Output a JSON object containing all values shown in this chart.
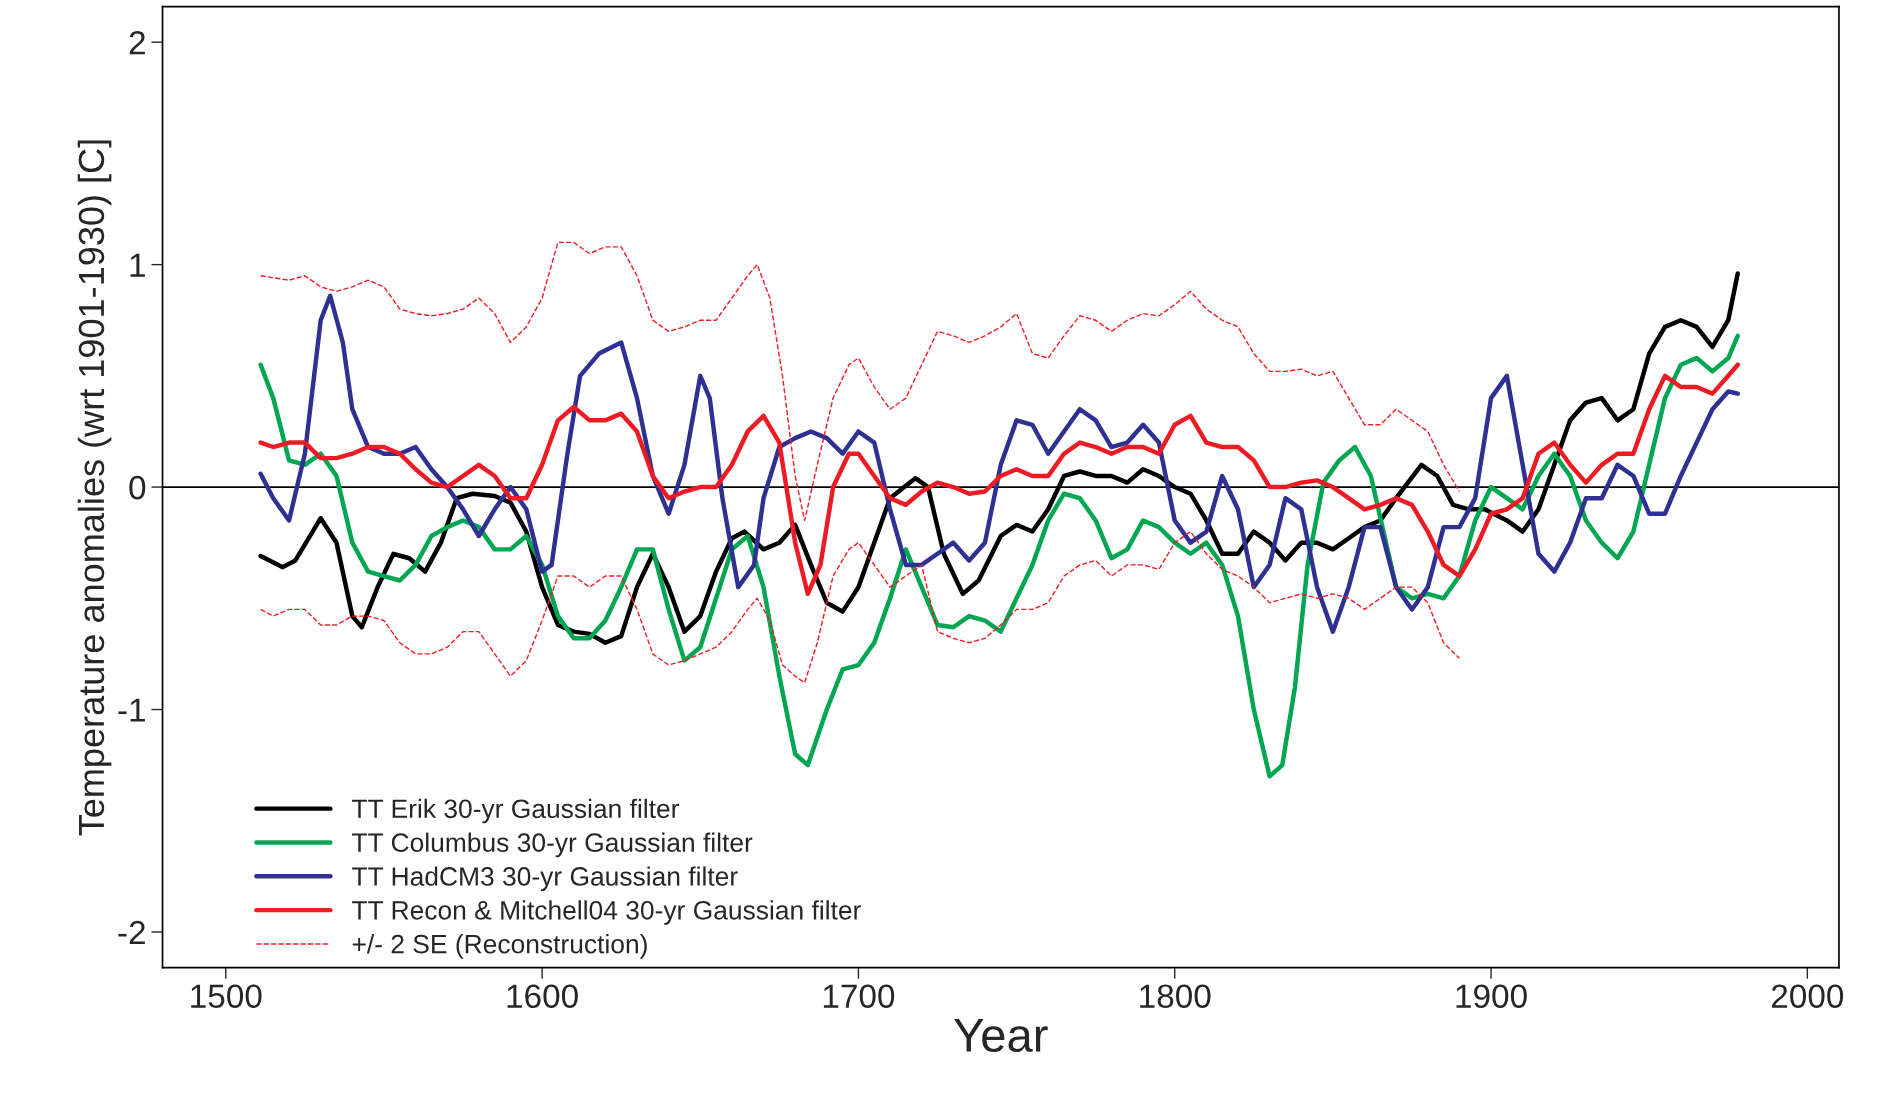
{
  "chart_data": {
    "type": "line",
    "xlabel": "Year",
    "ylabel": "Temperature anomalies (wrt 1901-1930) [C]",
    "xlim": [
      1480,
      2010
    ],
    "xticks": [
      1500,
      1600,
      1700,
      1800,
      1900,
      2000
    ],
    "ylim": [
      -2.16,
      2.16
    ],
    "yticks": [
      -2,
      -1,
      0,
      1,
      2
    ],
    "grid": false,
    "legend": "bottom left",
    "marker": "none",
    "ref_lines": [
      {
        "axis": "y",
        "value": 0,
        "color": "#000000",
        "line_style": "solid"
      }
    ],
    "series": [
      {
        "name": "TT Erik 30-yr Gaussian filter",
        "color": "#000000",
        "line_style": "solid",
        "x": [
          1511,
          1518,
          1522,
          1530,
          1535,
          1540,
          1543,
          1548,
          1553,
          1558,
          1563,
          1568,
          1573,
          1578,
          1585,
          1590,
          1595,
          1600,
          1605,
          1610,
          1615,
          1620,
          1625,
          1630,
          1635,
          1640,
          1645,
          1650,
          1655,
          1660,
          1664,
          1670,
          1675,
          1680,
          1685,
          1690,
          1695,
          1700,
          1705,
          1710,
          1718,
          1722,
          1727,
          1733,
          1738,
          1745,
          1750,
          1755,
          1760,
          1765,
          1770,
          1775,
          1780,
          1785,
          1790,
          1795,
          1800,
          1805,
          1810,
          1815,
          1820,
          1825,
          1830,
          1835,
          1840,
          1845,
          1850,
          1855,
          1860,
          1865,
          1870,
          1878,
          1883,
          1888,
          1893,
          1898,
          1905,
          1910,
          1915,
          1920,
          1925,
          1930,
          1935,
          1940,
          1945,
          1950,
          1955,
          1960,
          1965,
          1970,
          1975,
          1978
        ],
        "values": [
          -0.31,
          -0.36,
          -0.33,
          -0.14,
          -0.25,
          -0.58,
          -0.63,
          -0.45,
          -0.3,
          -0.32,
          -0.38,
          -0.25,
          -0.05,
          -0.03,
          -0.04,
          -0.07,
          -0.2,
          -0.45,
          -0.62,
          -0.65,
          -0.66,
          -0.7,
          -0.67,
          -0.45,
          -0.3,
          -0.45,
          -0.65,
          -0.58,
          -0.38,
          -0.23,
          -0.2,
          -0.28,
          -0.25,
          -0.17,
          -0.35,
          -0.52,
          -0.56,
          -0.45,
          -0.25,
          -0.05,
          0.04,
          0.0,
          -0.3,
          -0.48,
          -0.42,
          -0.22,
          -0.17,
          -0.2,
          -0.1,
          0.05,
          0.07,
          0.05,
          0.05,
          0.02,
          0.08,
          0.05,
          0.0,
          -0.03,
          -0.15,
          -0.3,
          -0.3,
          -0.2,
          -0.25,
          -0.33,
          -0.25,
          -0.25,
          -0.28,
          -0.23,
          -0.18,
          -0.15,
          -0.05,
          0.1,
          0.05,
          -0.08,
          -0.1,
          -0.1,
          -0.15,
          -0.2,
          -0.1,
          0.1,
          0.3,
          0.38,
          0.4,
          0.3,
          0.35,
          0.6,
          0.72,
          0.75,
          0.72,
          0.63,
          0.75,
          0.96
        ]
      },
      {
        "name": "TT Columbus 30-yr Gaussian filter",
        "color": "#00a651",
        "line_style": "solid",
        "x": [
          1511,
          1515,
          1520,
          1525,
          1530,
          1535,
          1540,
          1545,
          1550,
          1555,
          1560,
          1565,
          1570,
          1575,
          1580,
          1585,
          1590,
          1595,
          1600,
          1605,
          1610,
          1615,
          1620,
          1625,
          1630,
          1635,
          1640,
          1645,
          1650,
          1655,
          1660,
          1665,
          1670,
          1675,
          1680,
          1684,
          1690,
          1695,
          1700,
          1705,
          1710,
          1715,
          1720,
          1725,
          1730,
          1735,
          1740,
          1745,
          1750,
          1755,
          1760,
          1765,
          1770,
          1775,
          1780,
          1785,
          1790,
          1795,
          1800,
          1805,
          1810,
          1815,
          1820,
          1825,
          1830,
          1834,
          1838,
          1842,
          1847,
          1852,
          1857,
          1862,
          1866,
          1870,
          1875,
          1880,
          1885,
          1890,
          1895,
          1900,
          1905,
          1910,
          1915,
          1920,
          1925,
          1930,
          1935,
          1940,
          1945,
          1950,
          1955,
          1960,
          1965,
          1970,
          1975,
          1978
        ],
        "values": [
          0.55,
          0.4,
          0.12,
          0.1,
          0.15,
          0.05,
          -0.25,
          -0.38,
          -0.4,
          -0.42,
          -0.35,
          -0.22,
          -0.18,
          -0.15,
          -0.18,
          -0.28,
          -0.28,
          -0.22,
          -0.35,
          -0.58,
          -0.68,
          -0.68,
          -0.6,
          -0.45,
          -0.28,
          -0.28,
          -0.55,
          -0.78,
          -0.72,
          -0.5,
          -0.28,
          -0.22,
          -0.45,
          -0.85,
          -1.2,
          -1.25,
          -1.0,
          -0.82,
          -0.8,
          -0.7,
          -0.5,
          -0.28,
          -0.45,
          -0.62,
          -0.63,
          -0.58,
          -0.6,
          -0.65,
          -0.5,
          -0.35,
          -0.15,
          -0.03,
          -0.05,
          -0.15,
          -0.32,
          -0.28,
          -0.15,
          -0.18,
          -0.25,
          -0.3,
          -0.25,
          -0.35,
          -0.58,
          -1.0,
          -1.3,
          -1.25,
          -0.9,
          -0.35,
          0.02,
          0.12,
          0.18,
          0.05,
          -0.2,
          -0.45,
          -0.5,
          -0.48,
          -0.5,
          -0.4,
          -0.15,
          0.0,
          -0.05,
          -0.1,
          0.05,
          0.15,
          0.05,
          -0.15,
          -0.25,
          -0.32,
          -0.2,
          0.1,
          0.4,
          0.55,
          0.58,
          0.52,
          0.58,
          0.68
        ]
      },
      {
        "name": "TT HadCM3 30-yr Gaussian filter",
        "color": "#2e3192",
        "line_style": "solid",
        "x": [
          1511,
          1515,
          1520,
          1525,
          1530,
          1533,
          1537,
          1540,
          1545,
          1550,
          1555,
          1560,
          1565,
          1570,
          1575,
          1580,
          1585,
          1590,
          1595,
          1600,
          1603,
          1608,
          1612,
          1618,
          1625,
          1630,
          1635,
          1640,
          1645,
          1650,
          1653,
          1657,
          1662,
          1667,
          1670,
          1675,
          1680,
          1685,
          1690,
          1695,
          1700,
          1705,
          1710,
          1715,
          1720,
          1725,
          1730,
          1735,
          1740,
          1745,
          1750,
          1755,
          1760,
          1765,
          1770,
          1775,
          1780,
          1785,
          1790,
          1795,
          1800,
          1805,
          1810,
          1815,
          1820,
          1825,
          1830,
          1835,
          1840,
          1845,
          1850,
          1855,
          1860,
          1865,
          1870,
          1875,
          1880,
          1885,
          1890,
          1895,
          1900,
          1905,
          1910,
          1915,
          1920,
          1925,
          1930,
          1935,
          1940,
          1945,
          1950,
          1955,
          1960,
          1965,
          1970,
          1975,
          1978
        ],
        "values": [
          0.06,
          -0.05,
          -0.15,
          0.15,
          0.75,
          0.86,
          0.65,
          0.35,
          0.18,
          0.15,
          0.15,
          0.18,
          0.08,
          0.0,
          -0.1,
          -0.22,
          -0.1,
          0.0,
          -0.1,
          -0.38,
          -0.35,
          0.15,
          0.5,
          0.6,
          0.65,
          0.4,
          0.05,
          -0.12,
          0.1,
          0.5,
          0.4,
          -0.05,
          -0.45,
          -0.35,
          -0.05,
          0.18,
          0.22,
          0.25,
          0.22,
          0.15,
          0.25,
          0.2,
          -0.1,
          -0.35,
          -0.35,
          -0.3,
          -0.25,
          -0.33,
          -0.25,
          0.1,
          0.3,
          0.28,
          0.15,
          0.25,
          0.35,
          0.3,
          0.18,
          0.2,
          0.28,
          0.2,
          -0.15,
          -0.25,
          -0.2,
          0.05,
          -0.1,
          -0.45,
          -0.35,
          -0.05,
          -0.1,
          -0.45,
          -0.65,
          -0.45,
          -0.18,
          -0.18,
          -0.45,
          -0.55,
          -0.45,
          -0.18,
          -0.18,
          -0.05,
          0.4,
          0.5,
          0.1,
          -0.3,
          -0.38,
          -0.25,
          -0.05,
          -0.05,
          0.1,
          0.05,
          -0.12,
          -0.12,
          0.05,
          0.2,
          0.35,
          0.43,
          0.42
        ]
      },
      {
        "name": "TT Recon & Mitchell04 30-yr Gaussian filter",
        "color": "#ed1c24",
        "line_style": "solid",
        "x": [
          1511,
          1515,
          1520,
          1525,
          1530,
          1535,
          1540,
          1545,
          1550,
          1555,
          1560,
          1565,
          1570,
          1575,
          1580,
          1585,
          1590,
          1595,
          1600,
          1605,
          1610,
          1615,
          1620,
          1625,
          1630,
          1635,
          1640,
          1645,
          1650,
          1655,
          1660,
          1665,
          1670,
          1675,
          1680,
          1684,
          1688,
          1692,
          1697,
          1700,
          1705,
          1710,
          1715,
          1720,
          1725,
          1730,
          1735,
          1740,
          1745,
          1750,
          1755,
          1760,
          1765,
          1770,
          1775,
          1780,
          1785,
          1790,
          1795,
          1800,
          1805,
          1810,
          1815,
          1820,
          1825,
          1830,
          1835,
          1840,
          1845,
          1850,
          1855,
          1860,
          1865,
          1870,
          1875,
          1880,
          1885,
          1890,
          1895,
          1900,
          1905,
          1910,
          1915,
          1920,
          1925,
          1930,
          1935,
          1940,
          1945,
          1950,
          1955,
          1960,
          1965,
          1970,
          1975,
          1978
        ],
        "values": [
          0.2,
          0.18,
          0.2,
          0.2,
          0.13,
          0.13,
          0.15,
          0.18,
          0.18,
          0.15,
          0.08,
          0.02,
          0.0,
          0.05,
          0.1,
          0.05,
          -0.05,
          -0.05,
          0.1,
          0.3,
          0.36,
          0.3,
          0.3,
          0.33,
          0.25,
          0.05,
          -0.05,
          -0.02,
          0.0,
          0.0,
          0.1,
          0.25,
          0.32,
          0.2,
          -0.25,
          -0.48,
          -0.35,
          0.0,
          0.15,
          0.15,
          0.05,
          -0.05,
          -0.08,
          -0.02,
          0.02,
          0.0,
          -0.03,
          -0.02,
          0.05,
          0.08,
          0.05,
          0.05,
          0.15,
          0.2,
          0.18,
          0.15,
          0.18,
          0.18,
          0.15,
          0.28,
          0.32,
          0.2,
          0.18,
          0.18,
          0.12,
          0.0,
          0.0,
          0.02,
          0.03,
          0.0,
          -0.05,
          -0.1,
          -0.08,
          -0.05,
          -0.08,
          -0.2,
          -0.35,
          -0.4,
          -0.28,
          -0.12,
          -0.1,
          -0.05,
          0.15,
          0.2,
          0.1,
          0.02,
          0.1,
          0.15,
          0.15,
          0.35,
          0.5,
          0.45,
          0.45,
          0.42,
          0.5,
          0.55
        ]
      },
      {
        "name": "+/- 2 SE (Reconstruction)",
        "color": "#ed1c24",
        "line_style": "dashed",
        "x": [
          1511,
          1520,
          1525,
          1530,
          1535,
          1540,
          1545,
          1550,
          1555,
          1560,
          1565,
          1570,
          1575,
          1580,
          1585,
          1590,
          1595,
          1600,
          1605,
          1610,
          1615,
          1620,
          1625,
          1630,
          1635,
          1640,
          1645,
          1650,
          1655,
          1660,
          1665,
          1668,
          1672,
          1676,
          1680,
          1683,
          1687,
          1692,
          1697,
          1700,
          1705,
          1710,
          1715,
          1720,
          1725,
          1730,
          1735,
          1740,
          1745,
          1750,
          1755,
          1760,
          1765,
          1770,
          1775,
          1780,
          1785,
          1790,
          1795,
          1800,
          1805,
          1810,
          1815,
          1820,
          1825,
          1830,
          1835,
          1840,
          1845,
          1850,
          1855,
          1860,
          1865,
          1870,
          1875,
          1880,
          1885,
          1890
        ],
        "values": [
          0.95,
          0.93,
          0.95,
          0.9,
          0.88,
          0.9,
          0.93,
          0.9,
          0.8,
          0.78,
          0.77,
          0.78,
          0.8,
          0.85,
          0.78,
          0.65,
          0.72,
          0.85,
          1.1,
          1.1,
          1.05,
          1.08,
          1.08,
          0.95,
          0.75,
          0.7,
          0.72,
          0.75,
          0.75,
          0.85,
          0.95,
          1.0,
          0.85,
          0.5,
          0.05,
          -0.15,
          0.1,
          0.4,
          0.55,
          0.58,
          0.45,
          0.35,
          0.4,
          0.55,
          0.7,
          0.68,
          0.65,
          0.68,
          0.72,
          0.78,
          0.6,
          0.58,
          0.68,
          0.77,
          0.75,
          0.7,
          0.75,
          0.78,
          0.77,
          0.82,
          0.88,
          0.8,
          0.75,
          0.72,
          0.6,
          0.52,
          0.52,
          0.53,
          0.5,
          0.52,
          0.4,
          0.28,
          0.28,
          0.35,
          0.3,
          0.25,
          0.1,
          -0.02
        ]
      },
      {
        "color": "#ed1c24",
        "line_style": "dashed",
        "x": [
          1511,
          1515,
          1520,
          1525,
          1530,
          1535,
          1540,
          1545,
          1550,
          1555,
          1560,
          1565,
          1570,
          1575,
          1580,
          1585,
          1590,
          1595,
          1600,
          1605,
          1610,
          1615,
          1620,
          1625,
          1630,
          1635,
          1640,
          1645,
          1650,
          1655,
          1660,
          1665,
          1668,
          1672,
          1676,
          1680,
          1683,
          1687,
          1692,
          1697,
          1700,
          1705,
          1710,
          1715,
          1720,
          1725,
          1730,
          1735,
          1740,
          1745,
          1750,
          1755,
          1760,
          1765,
          1770,
          1775,
          1780,
          1785,
          1790,
          1795,
          1800,
          1805,
          1810,
          1815,
          1820,
          1825,
          1830,
          1835,
          1840,
          1845,
          1850,
          1855,
          1860,
          1865,
          1870,
          1875,
          1880,
          1885,
          1890
        ],
        "values": [
          -0.55,
          -0.58,
          -0.55,
          -0.55,
          -0.62,
          -0.62,
          -0.58,
          -0.58,
          -0.6,
          -0.7,
          -0.75,
          -0.75,
          -0.72,
          -0.65,
          -0.65,
          -0.75,
          -0.85,
          -0.78,
          -0.6,
          -0.4,
          -0.4,
          -0.45,
          -0.4,
          -0.4,
          -0.55,
          -0.75,
          -0.8,
          -0.78,
          -0.75,
          -0.72,
          -0.65,
          -0.55,
          -0.5,
          -0.6,
          -0.8,
          -0.85,
          -0.88,
          -0.7,
          -0.4,
          -0.28,
          -0.25,
          -0.35,
          -0.45,
          -0.4,
          -0.35,
          -0.65,
          -0.68,
          -0.7,
          -0.68,
          -0.62,
          -0.55,
          -0.55,
          -0.52,
          -0.4,
          -0.35,
          -0.33,
          -0.4,
          -0.35,
          -0.35,
          -0.37,
          -0.25,
          -0.2,
          -0.3,
          -0.37,
          -0.4,
          -0.45,
          -0.52,
          -0.5,
          -0.48,
          -0.5,
          -0.48,
          -0.5,
          -0.55,
          -0.5,
          -0.45,
          -0.45,
          -0.52,
          -0.7,
          -0.77
        ]
      }
    ]
  }
}
